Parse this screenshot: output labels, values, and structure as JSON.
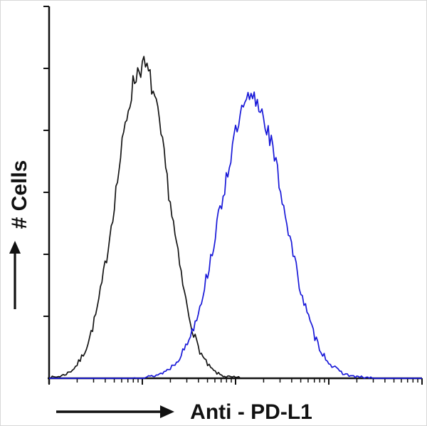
{
  "figure": {
    "background_color": "#ffffff",
    "axis_color": "#111111"
  },
  "chart_data": {
    "type": "line",
    "subtype": "flow-cytometry-histogram-overlay",
    "title": "",
    "xlabel": "Anti - PD-L1",
    "ylabel": "# Cells",
    "x_scale": "log-style ticks, no numeric labels",
    "y_scale": "linear, no numeric labels",
    "grid": false,
    "legend": "none",
    "layout": {
      "x_decades": 4,
      "y_tick_count": 6,
      "points_per_curve": 240,
      "x_major_tick_len": 9,
      "x_minor_tick_len": 6,
      "y_tick_len": 8
    },
    "series": [
      {
        "name": "black",
        "color": "#141414",
        "stroke_width": 1.7,
        "peak_center": 0.25,
        "sigma": 0.07,
        "peak_height": 0.84,
        "noise": 0.07,
        "seed": 7
      },
      {
        "name": "blue",
        "color": "#1818d8",
        "stroke_width": 1.7,
        "peak_center": 0.545,
        "sigma": 0.086,
        "peak_height": 0.75,
        "noise": 0.07,
        "seed": 13
      }
    ]
  }
}
